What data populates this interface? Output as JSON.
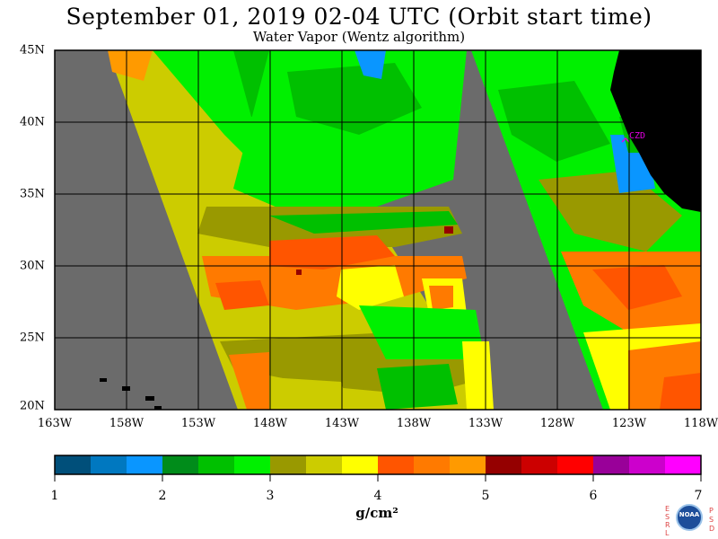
{
  "header": {
    "title": "September 01, 2019  02-04 UTC  (Orbit start time)",
    "subtitle": "Water Vapor (Wentz algorithm)"
  },
  "map": {
    "x_labels": [
      "163W",
      "158W",
      "153W",
      "148W",
      "143W",
      "138W",
      "133W",
      "128W",
      "123W",
      "118W"
    ],
    "y_labels": [
      "45N",
      "40N",
      "35N",
      "30N",
      "25N",
      "20N"
    ],
    "lon_range": [
      -163,
      -118
    ],
    "lat_range": [
      20,
      45
    ],
    "station_label": "CZD",
    "colors": {
      "no_data": "#6b6b6b",
      "land": "#000000"
    }
  },
  "colorbar": {
    "unit": "g/cm²",
    "ticks": [
      "1",
      "2",
      "3",
      "4",
      "5",
      "6",
      "7"
    ],
    "range": [
      1,
      7
    ],
    "colors": [
      "#004f7a",
      "#0078c0",
      "#0a96ff",
      "#008c1a",
      "#00c000",
      "#00f000",
      "#999900",
      "#cccc00",
      "#ffff00",
      "#ff5500",
      "#ff7a00",
      "#ff9a00",
      "#950000",
      "#cc0000",
      "#ff0000",
      "#990099",
      "#cc00cc",
      "#ff00ff"
    ]
  },
  "logo": {
    "text": "NOAA",
    "left_letters": [
      "E",
      "S",
      "R",
      "L"
    ],
    "right_letters": [
      "P",
      "S",
      "D"
    ]
  }
}
